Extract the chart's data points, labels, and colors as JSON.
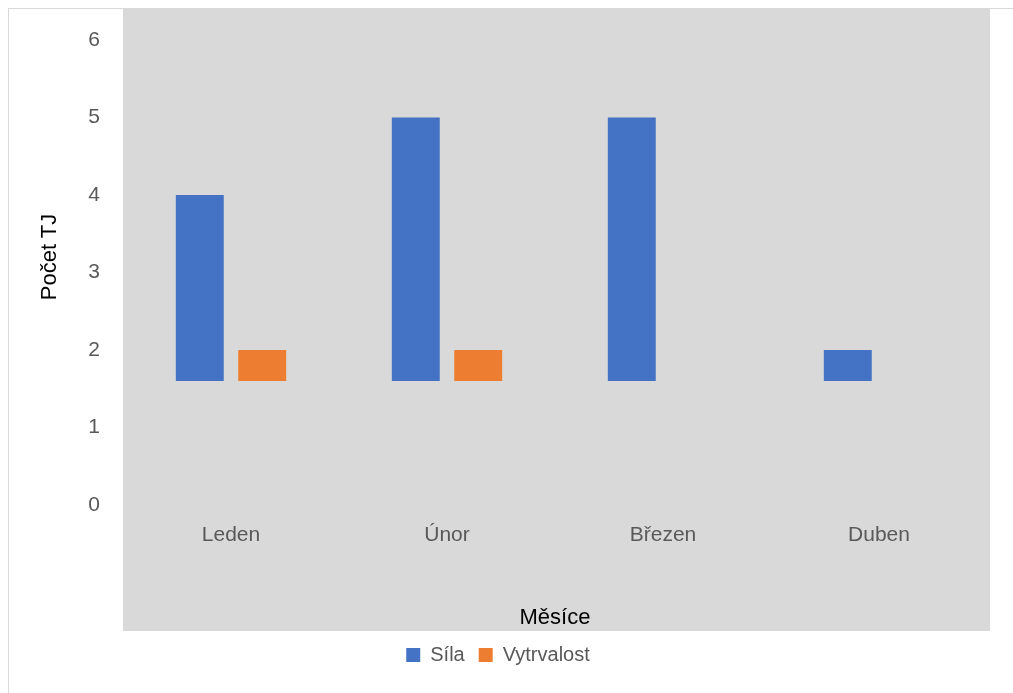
{
  "chart_data": {
    "type": "bar",
    "categories": [
      "Leden",
      "Únor",
      "Březen",
      "Duben"
    ],
    "series": [
      {
        "name": "Síla",
        "color": "#4472c4",
        "values": [
          2.4,
          3.4,
          3.4,
          0.4
        ],
        "base": [
          1.6,
          1.6,
          1.6,
          1.6
        ]
      },
      {
        "name": "Vytrvalost",
        "color": "#ed7d31",
        "values": [
          0.4,
          0.4,
          null,
          null
        ],
        "base": [
          1.6,
          1.6,
          null,
          null
        ]
      }
    ],
    "xlabel": "Měsíce",
    "ylabel": "Počet TJ",
    "ylim": [
      0,
      6.4
    ],
    "yticks": [
      0,
      1,
      2,
      3,
      4,
      5,
      6
    ],
    "legend": "bottom",
    "grid": false
  }
}
